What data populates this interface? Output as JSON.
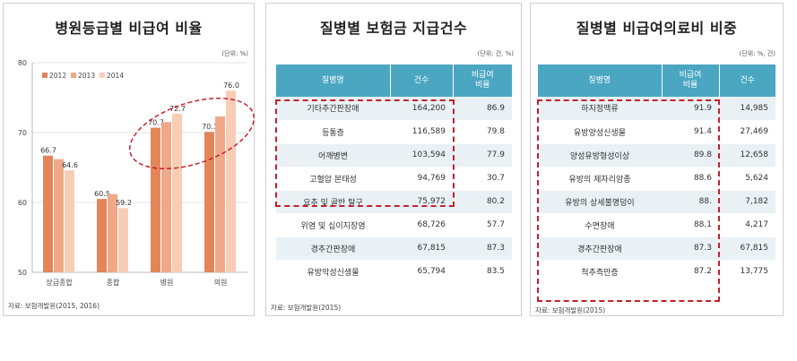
{
  "panel1": {
    "title": "병원등급별 비급여 비율",
    "unit": "(단위: %)",
    "source": "자료: 보험개발원(2015, 2016)"
  },
  "panel2": {
    "title": "질병별 보험금 지급건수",
    "unit": "(단위: 건, %)",
    "source": "자료: 보험개발원(2015)",
    "headers": [
      "질병명",
      "건수",
      "비급여\n비율"
    ],
    "rows": [
      [
        "기타추간판장애",
        "164,200",
        "86.9"
      ],
      [
        "등통증",
        "116,589",
        "79.8"
      ],
      [
        "어깨병변",
        "103,594",
        "77.9"
      ],
      [
        "고혈압 본태성",
        "94,769",
        "30.7"
      ],
      [
        "요추 및 골반 탈구",
        "75,972",
        "80.2"
      ],
      [
        "위염 및 십이지장염",
        "68,726",
        "57.7"
      ],
      [
        "경추간판장애",
        "67,815",
        "87.3"
      ],
      [
        "유방악성신생물",
        "65,794",
        "83.5"
      ]
    ]
  },
  "panel3": {
    "title": "질병별 비급여의료비 비중",
    "unit": "(단위: %, 건)",
    "source": "자료: 보험개발원(2015)",
    "headers": [
      "질병명",
      "비급여\n비율",
      "건수"
    ],
    "rows": [
      [
        "하지정맥류",
        "91.9",
        "14,985"
      ],
      [
        "유방양성신생물",
        "91.4",
        "27,469"
      ],
      [
        "양성유방형성이상",
        "89.8",
        "12,658"
      ],
      [
        "유방의 제자리암종",
        "88.6",
        "5,624"
      ],
      [
        "유방의 상세불명덩이",
        "88.",
        "7,182"
      ],
      [
        "수면장애",
        "88.1",
        "4,217"
      ],
      [
        "경추간판장애",
        "87.3",
        "67,815"
      ],
      [
        "척추측만증",
        "87.2",
        "13,775"
      ]
    ]
  },
  "colors": {
    "s2012": "#e2865a",
    "s2013": "#f0a988",
    "s2014": "#f8cdb6",
    "header": "#4aa6c1",
    "row_alt": "#e9f1f5",
    "highlight": "#c5202b"
  },
  "chart_data": {
    "type": "bar",
    "categories": [
      "상급종합",
      "종합",
      "병원",
      "의원"
    ],
    "series": [
      {
        "name": "2012",
        "values": [
          66.7,
          60.5,
          70.7,
          70.1
        ]
      },
      {
        "name": "2013",
        "values": [
          null,
          null,
          null,
          null
        ]
      },
      {
        "name": "2014",
        "values": [
          64.6,
          59.2,
          72.7,
          76.0
        ]
      }
    ],
    "bar_values": [
      [
        66.7,
        66.2,
        64.6
      ],
      [
        60.5,
        61.2,
        59.2
      ],
      [
        70.7,
        71.5,
        72.7
      ],
      [
        70.1,
        72.3,
        76.0
      ]
    ],
    "data_labels": [
      [
        "66.7",
        "",
        "64.6"
      ],
      [
        "60.5",
        "",
        "59.2"
      ],
      [
        "70.7",
        "",
        "72.7"
      ],
      [
        "70.1",
        "",
        "76.0"
      ]
    ],
    "ylim": [
      50,
      80
    ],
    "yticks": [
      "50",
      "60",
      "70",
      "80"
    ],
    "legend": [
      "2012",
      "2013",
      "2014"
    ],
    "legend_position": "top-left"
  }
}
